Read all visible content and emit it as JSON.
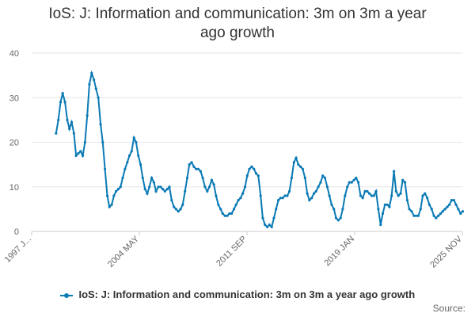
{
  "chart_data": {
    "type": "line",
    "title": "IoS: J: Information and communication: 3m on 3m a year ago growth",
    "xlabel": "",
    "ylabel": "",
    "ylim": [
      0,
      40
    ],
    "yticks": [
      0,
      10,
      20,
      30,
      40
    ],
    "x_tick_labels": [
      "1997 J...",
      "2004 MAY",
      "2011 SEP",
      "2019 JAN",
      "2025 NOV"
    ],
    "grid": true,
    "legend_position": "bottom",
    "color": "#0a7ab5",
    "source_label": "Source:",
    "series": [
      {
        "name": "IoS: J: Information and communication: 3m on 3m a year ago growth",
        "points": [
          [
            1998.83,
            22
          ],
          [
            1999.0,
            25
          ],
          [
            1999.17,
            29
          ],
          [
            1999.33,
            31
          ],
          [
            1999.5,
            29
          ],
          [
            1999.67,
            25
          ],
          [
            1999.83,
            23
          ],
          [
            2000.0,
            24.5
          ],
          [
            2000.17,
            22
          ],
          [
            2000.33,
            17
          ],
          [
            2000.5,
            17.5
          ],
          [
            2000.67,
            18
          ],
          [
            2000.83,
            17
          ],
          [
            2001.0,
            20
          ],
          [
            2001.17,
            26
          ],
          [
            2001.33,
            33
          ],
          [
            2001.5,
            35.5
          ],
          [
            2001.67,
            34
          ],
          [
            2001.83,
            32
          ],
          [
            2002.0,
            30
          ],
          [
            2002.17,
            24
          ],
          [
            2002.33,
            20
          ],
          [
            2002.5,
            14
          ],
          [
            2002.67,
            8
          ],
          [
            2002.83,
            5.5
          ],
          [
            2003.0,
            6
          ],
          [
            2003.17,
            8
          ],
          [
            2003.33,
            9
          ],
          [
            2003.5,
            9.5
          ],
          [
            2003.67,
            10
          ],
          [
            2003.83,
            12
          ],
          [
            2004.0,
            14
          ],
          [
            2004.17,
            15.5
          ],
          [
            2004.33,
            17
          ],
          [
            2004.5,
            18
          ],
          [
            2004.67,
            21
          ],
          [
            2004.83,
            20
          ],
          [
            2005.0,
            17
          ],
          [
            2005.17,
            15
          ],
          [
            2005.33,
            12
          ],
          [
            2005.5,
            9.5
          ],
          [
            2005.67,
            8.5
          ],
          [
            2005.83,
            10
          ],
          [
            2006.0,
            12
          ],
          [
            2006.17,
            11
          ],
          [
            2006.33,
            9
          ],
          [
            2006.5,
            10
          ],
          [
            2006.67,
            10
          ],
          [
            2006.83,
            9.5
          ],
          [
            2007.0,
            9
          ],
          [
            2007.17,
            9.5
          ],
          [
            2007.33,
            10
          ],
          [
            2007.5,
            7
          ],
          [
            2007.67,
            5.5
          ],
          [
            2007.83,
            5
          ],
          [
            2008.0,
            4.5
          ],
          [
            2008.17,
            5
          ],
          [
            2008.33,
            6
          ],
          [
            2008.5,
            9
          ],
          [
            2008.67,
            12
          ],
          [
            2008.83,
            15
          ],
          [
            2009.0,
            15.5
          ],
          [
            2009.17,
            14.5
          ],
          [
            2009.33,
            14
          ],
          [
            2009.5,
            14
          ],
          [
            2009.67,
            13.5
          ],
          [
            2009.83,
            12
          ],
          [
            2010.0,
            10
          ],
          [
            2010.17,
            9
          ],
          [
            2010.33,
            10
          ],
          [
            2010.5,
            11.5
          ],
          [
            2010.67,
            10.5
          ],
          [
            2010.83,
            8
          ],
          [
            2011.0,
            6
          ],
          [
            2011.17,
            5
          ],
          [
            2011.33,
            4
          ],
          [
            2011.5,
            3.5
          ],
          [
            2011.67,
            3.5
          ],
          [
            2011.83,
            4
          ],
          [
            2012.0,
            4
          ],
          [
            2012.17,
            5
          ],
          [
            2012.33,
            6
          ],
          [
            2012.5,
            7
          ],
          [
            2012.67,
            7.5
          ],
          [
            2012.83,
            8.5
          ],
          [
            2013.0,
            10
          ],
          [
            2013.17,
            12.5
          ],
          [
            2013.33,
            14
          ],
          [
            2013.5,
            14.5
          ],
          [
            2013.67,
            14
          ],
          [
            2013.83,
            13
          ],
          [
            2014.0,
            12.5
          ],
          [
            2014.17,
            8
          ],
          [
            2014.33,
            3
          ],
          [
            2014.5,
            1.5
          ],
          [
            2014.67,
            1
          ],
          [
            2014.83,
            1.5
          ],
          [
            2015.0,
            1
          ],
          [
            2015.17,
            3
          ],
          [
            2015.33,
            5
          ],
          [
            2015.5,
            7
          ],
          [
            2015.67,
            7.5
          ],
          [
            2015.83,
            7.5
          ],
          [
            2016.0,
            8
          ],
          [
            2016.17,
            8
          ],
          [
            2016.33,
            9
          ],
          [
            2016.5,
            12
          ],
          [
            2016.67,
            15.5
          ],
          [
            2016.83,
            16.5
          ],
          [
            2017.0,
            15
          ],
          [
            2017.17,
            14.5
          ],
          [
            2017.33,
            14
          ],
          [
            2017.5,
            12
          ],
          [
            2017.67,
            8.5
          ],
          [
            2017.83,
            7
          ],
          [
            2018.0,
            7.5
          ],
          [
            2018.17,
            8.5
          ],
          [
            2018.33,
            9
          ],
          [
            2018.5,
            10
          ],
          [
            2018.67,
            11
          ],
          [
            2018.83,
            12.5
          ],
          [
            2019.0,
            12
          ],
          [
            2019.17,
            10
          ],
          [
            2019.33,
            8
          ],
          [
            2019.5,
            6
          ],
          [
            2019.67,
            5
          ],
          [
            2019.83,
            3
          ],
          [
            2020.0,
            2.5
          ],
          [
            2020.17,
            3
          ],
          [
            2020.33,
            5
          ],
          [
            2020.5,
            8
          ],
          [
            2020.67,
            10
          ],
          [
            2020.83,
            11
          ],
          [
            2021.0,
            11
          ],
          [
            2021.17,
            11.5
          ],
          [
            2021.33,
            12
          ],
          [
            2021.5,
            11
          ],
          [
            2021.67,
            8
          ],
          [
            2021.83,
            7.5
          ],
          [
            2022.0,
            9
          ],
          [
            2022.17,
            9
          ],
          [
            2022.33,
            8.5
          ],
          [
            2022.5,
            8
          ],
          [
            2022.67,
            8
          ],
          [
            2022.83,
            9
          ],
          [
            2023.0,
            5
          ],
          [
            2023.17,
            1.5
          ],
          [
            2023.33,
            4
          ],
          [
            2023.5,
            6
          ],
          [
            2023.67,
            6
          ],
          [
            2023.83,
            5.5
          ],
          [
            2024.0,
            8
          ],
          [
            2024.17,
            13.5
          ],
          [
            2024.33,
            9
          ],
          [
            2024.5,
            8
          ],
          [
            2024.67,
            8.5
          ],
          [
            2024.83,
            11.5
          ],
          [
            2025.0,
            11
          ],
          [
            2025.17,
            7
          ],
          [
            2025.33,
            5
          ],
          [
            2025.5,
            4.5
          ],
          [
            2025.67,
            3.5
          ],
          [
            2025.83,
            3.5
          ],
          [
            2026.0,
            3.5
          ],
          [
            2026.17,
            5
          ],
          [
            2026.33,
            8
          ],
          [
            2026.5,
            8.5
          ],
          [
            2026.67,
            7.5
          ],
          [
            2026.83,
            6
          ],
          [
            2027.0,
            5
          ],
          [
            2027.17,
            3.5
          ],
          [
            2027.33,
            3
          ],
          [
            2027.5,
            3.5
          ],
          [
            2027.67,
            4
          ],
          [
            2027.83,
            4.5
          ],
          [
            2028.0,
            5
          ],
          [
            2028.17,
            5.5
          ],
          [
            2028.33,
            6
          ],
          [
            2028.5,
            7
          ],
          [
            2028.67,
            7
          ],
          [
            2028.83,
            6
          ],
          [
            2029.0,
            5
          ],
          [
            2029.17,
            4
          ],
          [
            2029.33,
            4.5
          ]
        ]
      }
    ]
  }
}
